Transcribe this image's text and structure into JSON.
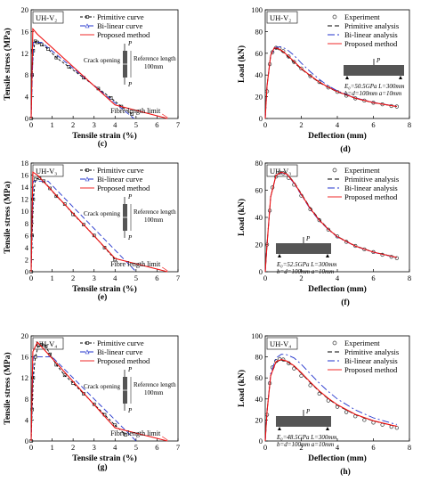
{
  "chart_data": [
    {
      "id": "c",
      "type": "line",
      "caption": "(c)",
      "panel_label": "UH-V₂",
      "xlabel": "Tensile strain (%)",
      "ylabel": "Tensile stress (MPa)",
      "xlim": [
        0,
        7
      ],
      "ylim": [
        0,
        20
      ],
      "xticks": [
        0,
        1,
        2,
        3,
        4,
        5,
        6,
        7
      ],
      "yticks": [
        0,
        4,
        8,
        12,
        16,
        20
      ],
      "legend": [
        "Primitive curve",
        "Bi-linear curve",
        "Proposed method"
      ],
      "inset": {
        "label": "Crack opening",
        "ref_line1": "Reference length",
        "ref_line2": "100mm",
        "load": "P"
      },
      "annotation": "Fibre length limit",
      "series": [
        {
          "name": "Primitive curve",
          "color": "#000000",
          "dash": "3,2",
          "marker": "square",
          "x": [
            0,
            0.05,
            0.1,
            0.2,
            0.3,
            0.5,
            0.8,
            1.2,
            1.8,
            2.5,
            3.2,
            3.8,
            4.3,
            4.8
          ],
          "y": [
            0,
            8,
            12.5,
            14.2,
            14.0,
            13.6,
            12.8,
            11.2,
            9.5,
            7.5,
            5.5,
            3.8,
            2.2,
            0.8
          ]
        },
        {
          "name": "Bi-linear curve",
          "color": "#2233cc",
          "dash": "6,3",
          "x": [
            0,
            0.1,
            0.5,
            4.9
          ],
          "y": [
            0,
            14,
            14,
            0
          ]
        },
        {
          "name": "Proposed method",
          "color": "#ee1111",
          "dash": "",
          "x": [
            0,
            0.08,
            0.3,
            4.0,
            6.5
          ],
          "y": [
            0,
            16.5,
            15.5,
            2.5,
            0
          ]
        }
      ]
    },
    {
      "id": "d",
      "type": "line",
      "caption": "(d)",
      "panel_label": "UH-V₂",
      "xlabel": "Deflection (mm)",
      "ylabel": "Load (kN)",
      "xlim": [
        0,
        8
      ],
      "ylim": [
        0,
        100
      ],
      "xticks": [
        0,
        2,
        4,
        6,
        8
      ],
      "yticks": [
        0,
        20,
        40,
        60,
        80,
        100
      ],
      "legend": [
        "Experiment",
        "Primitive analysis",
        "Bi-linear analysis",
        "Proposed method"
      ],
      "params": {
        "line1": "E₀=50.5GPa   L=300mm",
        "line2": "b=d=100mm   a=10mm"
      },
      "series": [
        {
          "name": "Experiment",
          "color": "#000000",
          "marker": "circle",
          "x": [
            0.1,
            0.25,
            0.4,
            0.6,
            0.8,
            1.0,
            1.3,
            1.6,
            2.0,
            2.5,
            3.0,
            3.5,
            4.0,
            4.5,
            5.0,
            5.5,
            6.0,
            6.5,
            7.0,
            7.3
          ],
          "y": [
            25,
            50,
            61,
            65,
            64.5,
            62,
            57,
            52,
            46,
            39,
            33.5,
            28.5,
            24.5,
            21,
            18.5,
            16.5,
            14.5,
            13,
            11.5,
            11
          ]
        },
        {
          "name": "Primitive analysis",
          "color": "#000000",
          "dash": "5,3",
          "x": [
            0,
            0.1,
            0.3,
            0.5,
            0.7,
            1.0,
            1.5,
            2.0,
            2.5,
            3.0,
            3.5,
            4.0,
            5.0,
            6.0,
            7.0,
            7.3
          ],
          "y": [
            0,
            30,
            58,
            64.5,
            64,
            61,
            53,
            45.5,
            39,
            33,
            28.5,
            24.5,
            18.5,
            14.5,
            11.8,
            11
          ]
        },
        {
          "name": "Bi-linear analysis",
          "color": "#2233cc",
          "dash": "8,3,2,3",
          "x": [
            0,
            0.1,
            0.3,
            0.6,
            0.9,
            1.2,
            1.6,
            2.0,
            2.5,
            3.0,
            3.5,
            4.0,
            5.0,
            6.0,
            7.0,
            7.3
          ],
          "y": [
            0,
            30,
            58,
            65.5,
            66,
            63.5,
            58,
            51,
            43,
            36,
            30,
            25.5,
            19,
            14.8,
            12,
            11.3
          ]
        },
        {
          "name": "Proposed method",
          "color": "#ee1111",
          "dash": "",
          "x": [
            0,
            0.1,
            0.3,
            0.5,
            0.7,
            1.0,
            1.5,
            2.0,
            2.5,
            3.0,
            3.5,
            4.0,
            5.0,
            6.0,
            7.0,
            7.3
          ],
          "y": [
            0,
            30,
            58,
            65,
            64.5,
            61.5,
            54,
            46,
            39.5,
            33.5,
            28.8,
            24.8,
            18.7,
            14.6,
            11.8,
            11.1
          ]
        }
      ]
    },
    {
      "id": "e",
      "type": "line",
      "caption": "(e)",
      "panel_label": "UH-V₃",
      "xlabel": "Tensile strain (%)",
      "ylabel": "Tensile stress (MPa)",
      "xlim": [
        0,
        7
      ],
      "ylim": [
        0,
        18
      ],
      "xticks": [
        0,
        1,
        2,
        3,
        4,
        5,
        6,
        7
      ],
      "yticks": [
        0,
        2,
        4,
        6,
        8,
        10,
        12,
        14,
        16,
        18
      ],
      "legend": [
        "Primitive curve",
        "Bi-linear curve",
        "Proposed method"
      ],
      "inset": {
        "label": "Crack opening",
        "ref_line1": "Reference length",
        "ref_line2": "100mm",
        "load": "P"
      },
      "annotation": "Fibre length limit",
      "series": [
        {
          "name": "Primitive curve",
          "color": "#000000",
          "dash": "3,2",
          "marker": "square",
          "x": [
            0,
            0.05,
            0.1,
            0.2,
            0.4,
            0.6,
            0.9,
            1.2,
            1.6,
            2.0,
            2.5,
            3.0,
            3.5,
            4.0
          ],
          "y": [
            0,
            6,
            12,
            15.3,
            15.5,
            15.0,
            13.8,
            12.5,
            11.2,
            9.5,
            7.8,
            6.0,
            4.0,
            2.0
          ]
        },
        {
          "name": "Bi-linear curve",
          "color": "#2233cc",
          "dash": "6,3",
          "x": [
            0,
            0.1,
            0.8,
            5.0
          ],
          "y": [
            0,
            15,
            15,
            0
          ]
        },
        {
          "name": "Proposed method",
          "color": "#ee1111",
          "dash": "",
          "x": [
            0,
            0.08,
            0.3,
            4.0,
            6.5
          ],
          "y": [
            0,
            16.5,
            16.0,
            2.2,
            0
          ]
        }
      ]
    },
    {
      "id": "f",
      "type": "line",
      "caption": "(f)",
      "panel_label": "UH-V₃",
      "xlabel": "Deflection (mm)",
      "ylabel": "Load (kN)",
      "xlim": [
        0,
        8
      ],
      "ylim": [
        0,
        80
      ],
      "xticks": [
        0,
        2,
        4,
        6,
        8
      ],
      "yticks": [
        0,
        20,
        40,
        60,
        80
      ],
      "legend": [
        "Experiment",
        "Primitive analysis",
        "Bi-linear analysis",
        "Proposed method"
      ],
      "params": {
        "line1": "E₀=52.5GPa   L=300mm",
        "line2": "b=d=100mm   a=10mm"
      },
      "series": [
        {
          "name": "Experiment",
          "color": "#000000",
          "marker": "circle",
          "x": [
            0.1,
            0.25,
            0.4,
            0.6,
            0.8,
            1.0,
            1.3,
            1.6,
            2.0,
            2.5,
            3.0,
            3.5,
            4.0,
            4.5,
            5.0,
            5.5,
            6.0,
            6.5,
            7.0,
            7.3
          ],
          "y": [
            20,
            45,
            62,
            70,
            73,
            72.5,
            69,
            64,
            56,
            46,
            38,
            31,
            26,
            22,
            19,
            16.5,
            14.5,
            12.5,
            11,
            10
          ]
        },
        {
          "name": "Primitive analysis",
          "color": "#000000",
          "dash": "5,3",
          "x": [
            0,
            0.1,
            0.3,
            0.6,
            0.9,
            1.2,
            1.6,
            2.0,
            2.5,
            3.0,
            3.5,
            4.0,
            5.0,
            6.0,
            7.0,
            7.3
          ],
          "y": [
            0,
            20,
            55,
            71,
            73.5,
            72,
            66,
            57.5,
            47,
            38.5,
            31.5,
            26,
            19,
            14.5,
            11.5,
            10.5
          ]
        },
        {
          "name": "Bi-linear analysis",
          "color": "#2233cc",
          "dash": "8,3,2,3",
          "x": [
            0,
            0.1,
            0.3,
            0.6,
            0.9,
            1.2,
            1.6,
            2.0,
            2.5,
            3.0,
            3.5,
            4.0,
            5.0,
            6.0,
            7.0,
            7.3
          ],
          "y": [
            0,
            20,
            55,
            71,
            73,
            71.5,
            65,
            56.5,
            46,
            37.5,
            31,
            25.5,
            18.7,
            14.3,
            11.3,
            10.4
          ]
        },
        {
          "name": "Proposed method",
          "color": "#ee1111",
          "dash": "",
          "x": [
            0,
            0.1,
            0.3,
            0.6,
            0.9,
            1.2,
            1.6,
            2.0,
            2.5,
            3.0,
            3.5,
            4.0,
            5.0,
            6.0,
            7.0,
            7.3
          ],
          "y": [
            0,
            20,
            55,
            71,
            73.2,
            71.8,
            65.5,
            57,
            46.5,
            38,
            31.2,
            25.8,
            18.8,
            14.4,
            11.4,
            10.5
          ]
        }
      ]
    },
    {
      "id": "g",
      "type": "line",
      "caption": "(g)",
      "panel_label": "UH-V₄",
      "xlabel": "Tensile strain (%)",
      "ylabel": "Tensile stress (MPa)",
      "xlim": [
        0,
        7
      ],
      "ylim": [
        0,
        20
      ],
      "xticks": [
        0,
        1,
        2,
        3,
        4,
        5,
        6,
        7
      ],
      "yticks": [
        0,
        4,
        8,
        12,
        16,
        20
      ],
      "legend": [
        "Primitive curve",
        "Bi-linear curve",
        "Proposed method"
      ],
      "inset": {
        "label": "Crack opening",
        "ref_line1": "Reference length",
        "ref_line2": "100mm",
        "load": "P"
      },
      "annotation": "Fibre length limit",
      "series": [
        {
          "name": "Primitive curve",
          "color": "#000000",
          "dash": "3,2",
          "marker": "square",
          "x": [
            0,
            0.05,
            0.1,
            0.2,
            0.35,
            0.5,
            0.7,
            0.9,
            1.2,
            1.6,
            2.0,
            2.5,
            3.0,
            3.5,
            4.0,
            4.5
          ],
          "y": [
            0,
            6,
            12,
            16,
            18.2,
            18.3,
            18.0,
            16.5,
            14.5,
            12.5,
            11.0,
            9.0,
            7.0,
            5.0,
            3.0,
            1.2
          ]
        },
        {
          "name": "Bi-linear curve",
          "color": "#2233cc",
          "dash": "6,3",
          "x": [
            0,
            0.1,
            1.0,
            5.0
          ],
          "y": [
            0,
            16,
            16,
            0
          ]
        },
        {
          "name": "Proposed method",
          "color": "#ee1111",
          "dash": "",
          "x": [
            0,
            0.08,
            0.3,
            4.0,
            6.5
          ],
          "y": [
            0,
            17,
            18.8,
            2.5,
            0
          ]
        }
      ]
    },
    {
      "id": "h",
      "type": "line",
      "caption": "(h)",
      "panel_label": "UH-V₄",
      "xlabel": "Deflection (mm)",
      "ylabel": "Load (kN)",
      "xlim": [
        0,
        8
      ],
      "ylim": [
        0,
        100
      ],
      "xticks": [
        0,
        2,
        4,
        6,
        8
      ],
      "yticks": [
        0,
        20,
        40,
        60,
        80,
        100
      ],
      "legend": [
        "Experiment",
        "Primitive analysis",
        "Bi-linear analysis",
        "Proposed method"
      ],
      "params": {
        "line1": "E₀=48.5GPa   L=300mm",
        "line2": "b=d=100mm   a=10mm"
      },
      "series": [
        {
          "name": "Experiment",
          "color": "#000000",
          "marker": "circle",
          "x": [
            0.1,
            0.25,
            0.4,
            0.6,
            0.8,
            1.0,
            1.3,
            1.6,
            2.0,
            2.5,
            3.0,
            3.5,
            4.0,
            4.5,
            5.0,
            5.5,
            6.0,
            6.5,
            7.0,
            7.3
          ],
          "y": [
            25,
            55,
            70,
            76,
            78,
            77.5,
            74,
            69,
            62,
            53,
            45,
            38.5,
            32.5,
            27.5,
            23.5,
            20,
            17.5,
            15.5,
            13.5,
            12.5
          ]
        },
        {
          "name": "Primitive analysis",
          "color": "#000000",
          "dash": "5,3",
          "x": [
            0,
            0.1,
            0.3,
            0.6,
            0.9,
            1.2,
            1.6,
            2.0,
            2.5,
            3.0,
            3.5,
            4.0,
            5.0,
            6.0,
            7.0,
            7.3
          ],
          "y": [
            0,
            28,
            62,
            75,
            77,
            75.5,
            71,
            64.5,
            55.5,
            47,
            40,
            34,
            25,
            19,
            15,
            14
          ]
        },
        {
          "name": "Bi-linear analysis",
          "color": "#2233cc",
          "dash": "8,3,2,3",
          "x": [
            0,
            0.1,
            0.3,
            0.6,
            0.9,
            1.2,
            1.6,
            2.0,
            2.5,
            3.0,
            3.5,
            4.0,
            5.0,
            6.0,
            7.0,
            7.3
          ],
          "y": [
            0,
            28,
            64,
            79,
            82.5,
            82,
            79,
            73,
            64,
            55,
            47,
            40,
            29.5,
            22,
            17,
            15.8
          ]
        },
        {
          "name": "Proposed method",
          "color": "#ee1111",
          "dash": "",
          "x": [
            0,
            0.1,
            0.3,
            0.6,
            0.9,
            1.2,
            1.6,
            2.0,
            2.5,
            3.0,
            3.5,
            4.0,
            5.0,
            6.0,
            7.0,
            7.3
          ],
          "y": [
            0,
            28,
            62,
            75.5,
            77.5,
            76,
            71.5,
            65,
            56,
            47.5,
            40.5,
            34.5,
            25.3,
            19.2,
            15.1,
            14.1
          ]
        }
      ]
    }
  ]
}
